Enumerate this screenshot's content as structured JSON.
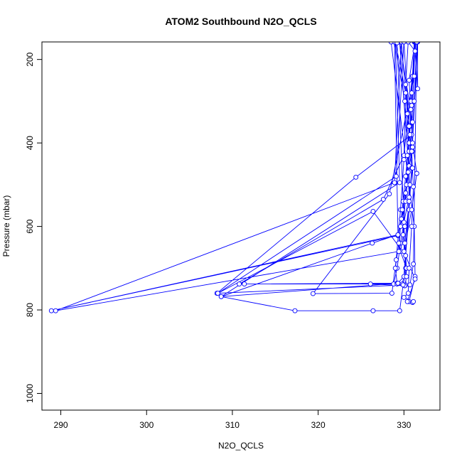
{
  "chart_data": {
    "type": "line",
    "title": "ATOM2 Southbound N2O_QCLS",
    "xlabel": "N2O_QCLS",
    "ylabel": "Pressure (mbar)",
    "xlim": [
      287.8,
      334.2
    ],
    "ylim": [
      1040,
      158
    ],
    "y_reversed": true,
    "grid": false,
    "markers": "open-circle",
    "x_ticks": [
      290,
      300,
      310,
      320,
      330
    ],
    "x_tick_labels": [
      "290",
      "300",
      "310",
      "320",
      "330"
    ],
    "y_ticks": [
      200,
      400,
      600,
      800,
      1000
    ],
    "y_tick_labels": [
      "200",
      "400",
      "600",
      "800",
      "1000"
    ],
    "series": [
      {
        "color": "#0000ff",
        "points": [
          [
            331.2,
            158
          ],
          [
            331.0,
            240
          ],
          [
            330.8,
            300
          ],
          [
            330.5,
            360
          ],
          [
            331.0,
            420
          ],
          [
            330.6,
            455
          ],
          [
            330.3,
            500
          ],
          [
            329.9,
            540
          ],
          [
            330.1,
            600
          ],
          [
            329.6,
            660
          ],
          [
            330.3,
            700
          ],
          [
            330.2,
            740
          ],
          [
            308.2,
            760
          ],
          [
            324.4,
            482
          ],
          [
            330.9,
            380
          ],
          [
            331.3,
            158
          ],
          [
            330.6,
            250
          ],
          [
            330.8,
            320
          ],
          [
            331.0,
            410
          ],
          [
            330.5,
            470
          ],
          [
            330.6,
            530
          ],
          [
            330.0,
            590
          ],
          [
            329.6,
            640
          ],
          [
            329.2,
            700
          ],
          [
            328.8,
            738
          ],
          [
            310.8,
            738
          ],
          [
            327.6,
            535
          ],
          [
            330.0,
            430
          ],
          [
            331.4,
            158
          ],
          [
            330.9,
            280
          ],
          [
            330.7,
            360
          ],
          [
            330.4,
            430
          ],
          [
            330.2,
            520
          ],
          [
            329.7,
            582
          ],
          [
            329.3,
            620
          ],
          [
            326.3,
            640
          ],
          [
            308.7,
            768
          ],
          [
            329.5,
            495
          ],
          [
            329.0,
            158
          ],
          [
            330.2,
            280
          ],
          [
            330.0,
            440
          ],
          [
            329.6,
            560
          ],
          [
            329.1,
            680
          ],
          [
            328.6,
            760
          ],
          [
            319.4,
            761
          ],
          [
            328.3,
            522
          ],
          [
            331.2,
            240
          ],
          [
            330.9,
            310
          ],
          [
            330.6,
            400
          ],
          [
            330.2,
            480
          ],
          [
            329.8,
            560
          ],
          [
            329.4,
            640
          ],
          [
            329.0,
            700
          ],
          [
            329.2,
            736
          ],
          [
            311.4,
            738
          ],
          [
            329.2,
            738
          ],
          [
            330.0,
            720
          ],
          [
            330.7,
            500
          ],
          [
            329.5,
            158
          ],
          [
            331.0,
            350
          ],
          [
            330.2,
            540
          ],
          [
            329.3,
            622
          ],
          [
            288.9,
            802
          ],
          [
            329.3,
            620
          ],
          [
            328.9,
            158
          ],
          [
            330.1,
            300
          ],
          [
            330.6,
            420
          ],
          [
            330.2,
            520
          ],
          [
            329.6,
            600
          ],
          [
            329.4,
            660
          ],
          [
            289.4,
            802
          ],
          [
            328.9,
            495
          ],
          [
            329.7,
            158
          ],
          [
            330.4,
            330
          ],
          [
            330.9,
            460
          ],
          [
            330.6,
            560
          ],
          [
            330.2,
            670
          ],
          [
            326.4,
            564
          ],
          [
            308.3,
            760
          ],
          [
            329.1,
            480
          ],
          [
            330.0,
            158
          ],
          [
            330.6,
            360
          ],
          [
            330.2,
            520
          ],
          [
            329.9,
            620
          ],
          [
            330.3,
            720
          ],
          [
            330.1,
            742
          ],
          [
            326.1,
            738
          ],
          [
            329.8,
            738
          ],
          [
            330.2,
            700
          ],
          [
            329.2,
            160
          ],
          [
            328.5,
            158
          ],
          [
            331.2,
            600
          ],
          [
            331.3,
            720
          ],
          [
            330.6,
            780
          ],
          [
            331.0,
            782
          ],
          [
            330.4,
            780
          ],
          [
            331.3,
            726
          ],
          [
            330.0,
            660
          ],
          [
            330.9,
            560
          ],
          [
            331.5,
            473
          ],
          [
            331.0,
            400
          ],
          [
            331.6,
            158
          ],
          [
            331.6,
            270
          ],
          [
            331.3,
            180
          ],
          [
            330.5,
            158
          ],
          [
            330.2,
            260
          ],
          [
            330.7,
            380
          ],
          [
            331.0,
            460
          ],
          [
            330.6,
            540
          ],
          [
            330.1,
            640
          ],
          [
            330.3,
            700
          ],
          [
            329.9,
            740
          ],
          [
            329.5,
            802
          ],
          [
            326.4,
            802
          ],
          [
            317.3,
            802
          ],
          [
            308.7,
            768
          ],
          [
            329.3,
            736
          ],
          [
            330.7,
            740
          ],
          [
            331.1,
            690
          ],
          [
            331.5,
            158
          ],
          [
            331.2,
            300
          ],
          [
            330.9,
            420
          ],
          [
            331.1,
            505
          ],
          [
            330.9,
            600
          ],
          [
            330.6,
            700
          ],
          [
            330.5,
            760
          ],
          [
            330.0,
            770
          ],
          [
            331.1,
            780
          ]
        ]
      }
    ]
  }
}
